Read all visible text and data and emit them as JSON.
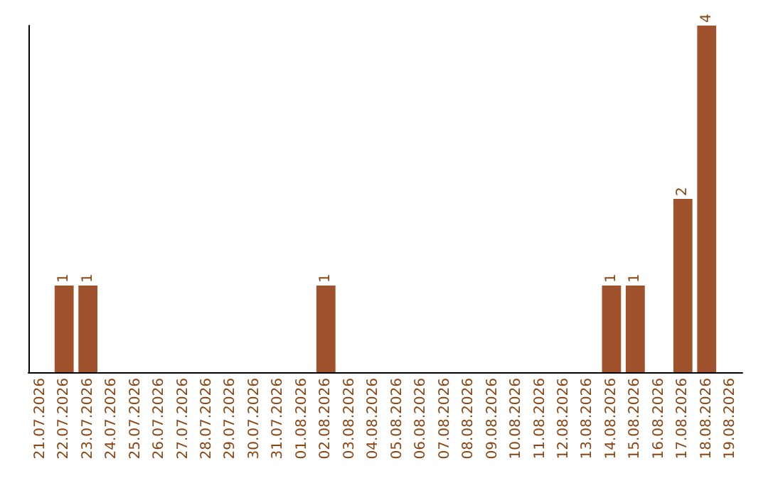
{
  "chart_data": {
    "type": "bar",
    "categories": [
      "21.07.2026",
      "22.07.2026",
      "23.07.2026",
      "24.07.2026",
      "25.07.2026",
      "26.07.2026",
      "27.07.2026",
      "28.07.2026",
      "29.07.2026",
      "30.07.2026",
      "31.07.2026",
      "01.08.2026",
      "02.08.2026",
      "03.08.2026",
      "04.08.2026",
      "05.08.2026",
      "06.08.2026",
      "07.08.2026",
      "08.08.2026",
      "09.08.2026",
      "10.08.2026",
      "11.08.2026",
      "12.08.2026",
      "13.08.2026",
      "14.08.2026",
      "15.08.2026",
      "16.08.2026",
      "17.08.2026",
      "18.08.2026",
      "19.08.2026"
    ],
    "values": [
      0,
      1,
      1,
      0,
      0,
      0,
      0,
      0,
      0,
      0,
      0,
      0,
      1,
      0,
      0,
      0,
      0,
      0,
      0,
      0,
      0,
      0,
      0,
      0,
      1,
      1,
      0,
      2,
      4,
      0
    ],
    "value_labels": [
      null,
      "1",
      "1",
      null,
      null,
      null,
      null,
      null,
      null,
      null,
      null,
      null,
      "1",
      null,
      null,
      null,
      null,
      null,
      null,
      null,
      null,
      null,
      null,
      null,
      "1",
      "1",
      null,
      "2",
      "4",
      null
    ],
    "color": "#a0522d",
    "tick_labels": "x"
  }
}
